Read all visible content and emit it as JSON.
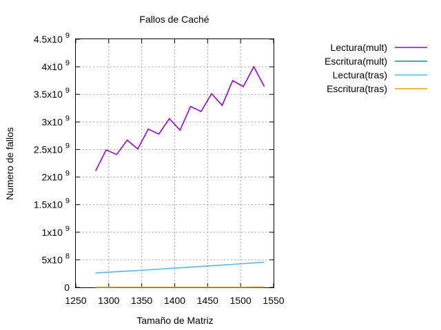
{
  "chart_data": {
    "type": "line",
    "title": "Fallos de Caché",
    "xlabel": "Tamaño de Matriz",
    "ylabel": "Numero de fallos",
    "xlim": [
      1250,
      1550
    ],
    "ylim": [
      0,
      4500000000
    ],
    "grid": true,
    "legend_position": "right",
    "x_ticks": [
      {
        "value": 1250,
        "label": "1250"
      },
      {
        "value": 1300,
        "label": "1300"
      },
      {
        "value": 1350,
        "label": "1350"
      },
      {
        "value": 1400,
        "label": "1400"
      },
      {
        "value": 1450,
        "label": "1450"
      },
      {
        "value": 1500,
        "label": "1500"
      },
      {
        "value": 1550,
        "label": "1550"
      }
    ],
    "y_ticks": [
      {
        "value": 0,
        "mantissa": "0",
        "exp": ""
      },
      {
        "value": 500000000,
        "mantissa": "5x10",
        "exp": "8"
      },
      {
        "value": 1000000000,
        "mantissa": "1x10",
        "exp": "9"
      },
      {
        "value": 1500000000,
        "mantissa": "1.5x10",
        "exp": "9"
      },
      {
        "value": 2000000000,
        "mantissa": "2x10",
        "exp": "9"
      },
      {
        "value": 2500000000,
        "mantissa": "2.5x10",
        "exp": "9"
      },
      {
        "value": 3000000000,
        "mantissa": "3x10",
        "exp": "9"
      },
      {
        "value": 3500000000,
        "mantissa": "3.5x10",
        "exp": "9"
      },
      {
        "value": 4000000000,
        "mantissa": "4x10",
        "exp": "9"
      },
      {
        "value": 4500000000,
        "mantissa": "4.5x10",
        "exp": "9"
      }
    ],
    "series": [
      {
        "name": "Lectura(mult)",
        "color": "#9400d3",
        "x": [
          1280,
          1296,
          1312,
          1328,
          1344,
          1360,
          1376,
          1392,
          1408,
          1424,
          1440,
          1456,
          1472,
          1488,
          1504,
          1520,
          1536
        ],
        "y": [
          2110000000,
          2490000000,
          2410000000,
          2670000000,
          2510000000,
          2870000000,
          2780000000,
          3060000000,
          2850000000,
          3280000000,
          3190000000,
          3510000000,
          3300000000,
          3750000000,
          3640000000,
          4000000000,
          3640000000
        ]
      },
      {
        "name": "Escritura(mult)",
        "color": "#009e73",
        "x": [
          1280,
          1296,
          1312,
          1328,
          1344,
          1360,
          1376,
          1392,
          1408,
          1424,
          1440,
          1456,
          1472,
          1488,
          1504,
          1520,
          1536
        ],
        "y": [
          1700000,
          1800000,
          1900000,
          2000000,
          2100000,
          2200000,
          2300000,
          2400000,
          2500000,
          2600000,
          2700000,
          2800000,
          2900000,
          3000000,
          3100000,
          3200000,
          3300000
        ]
      },
      {
        "name": "Lectura(tras)",
        "color": "#56b4e9",
        "x": [
          1280,
          1296,
          1312,
          1328,
          1344,
          1360,
          1376,
          1392,
          1408,
          1424,
          1440,
          1456,
          1472,
          1488,
          1504,
          1520,
          1536
        ],
        "y": [
          262000000,
          272000000,
          284000000,
          295000000,
          306000000,
          318000000,
          330000000,
          342000000,
          354000000,
          366000000,
          379000000,
          391000000,
          404000000,
          417000000,
          430000000,
          444000000,
          458000000
        ]
      },
      {
        "name": "Escritura(tras)",
        "color": "#e69f00",
        "x": [
          1280,
          1296,
          1312,
          1328,
          1344,
          1360,
          1376,
          1392,
          1408,
          1424,
          1440,
          1456,
          1472,
          1488,
          1504,
          1520,
          1536
        ],
        "y": [
          1700000,
          1800000,
          1900000,
          2000000,
          2100000,
          2200000,
          2300000,
          2400000,
          2500000,
          2600000,
          2700000,
          2800000,
          2900000,
          3000000,
          3100000,
          3200000,
          3300000
        ]
      }
    ]
  }
}
